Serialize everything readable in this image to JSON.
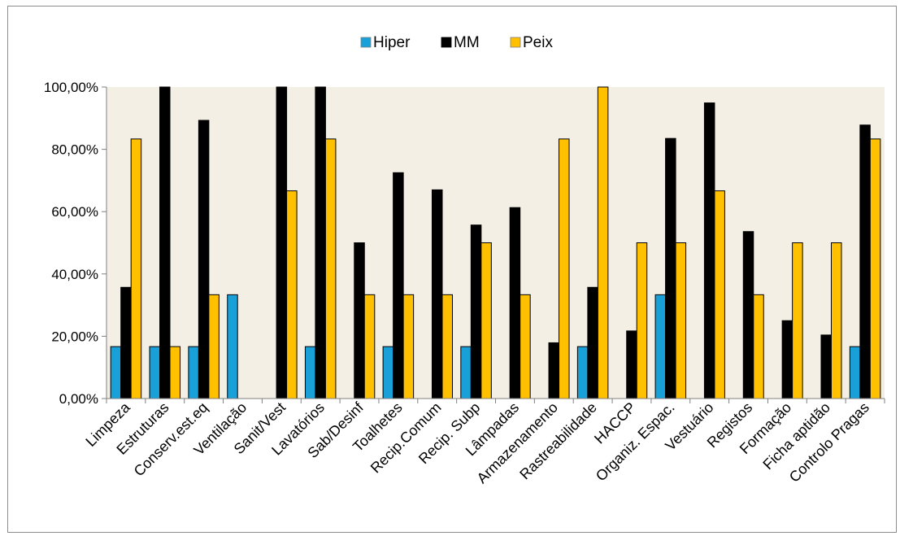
{
  "chart_data": {
    "type": "bar",
    "categories": [
      "Limpeza",
      "Estruturas",
      "Conserv.est.eq",
      "Ventilação",
      "Sanit/Vest",
      "Lavatórios",
      "Sab/Desinf",
      "Toalhetes",
      "Recip.Comum",
      "Recip. Subp",
      "Lâmpadas",
      "Armazenamento",
      "Rastreabilidade",
      "HACCP",
      "Organiz. Espac.",
      "Vestuário",
      "Registos",
      "Formação",
      "Ficha aptidão",
      "Controlo Pragas"
    ],
    "series": [
      {
        "name": "Hiper",
        "color": "#1aa0d8",
        "values": [
          16.67,
          16.67,
          16.67,
          33.33,
          0,
          16.67,
          0,
          16.67,
          0,
          16.67,
          0,
          0,
          16.67,
          0,
          33.33,
          0,
          0,
          0,
          0,
          16.67
        ]
      },
      {
        "name": "MM",
        "color": "#000000",
        "values": [
          35.7,
          100,
          89.3,
          0,
          100,
          100,
          50.0,
          72.5,
          67.0,
          55.7,
          61.3,
          17.9,
          35.7,
          21.7,
          83.5,
          94.9,
          53.6,
          25.0,
          20.4,
          87.8
        ]
      },
      {
        "name": "Peix",
        "color": "#ffc000",
        "values": [
          83.33,
          16.67,
          33.33,
          0,
          66.67,
          83.33,
          33.33,
          33.33,
          33.33,
          50.0,
          33.33,
          83.33,
          100,
          50.0,
          50.0,
          66.67,
          33.33,
          50.0,
          50.0,
          83.33
        ]
      }
    ],
    "yticks": [
      "0,00%",
      "20,00%",
      "40,00%",
      "60,00%",
      "80,00%",
      "100,00%"
    ],
    "ylim": [
      0,
      100
    ],
    "legend_position": "top",
    "plot_background": "#f3efe4"
  }
}
